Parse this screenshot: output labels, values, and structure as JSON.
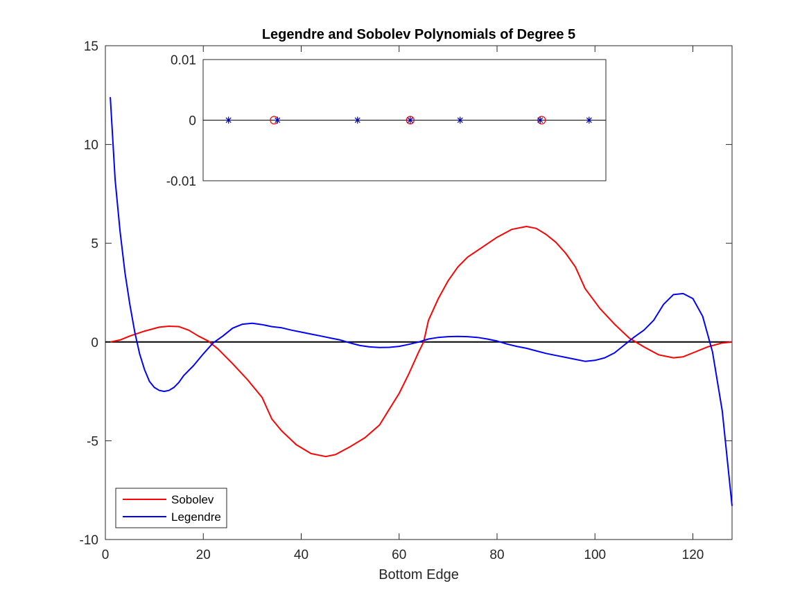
{
  "chart_data": [
    {
      "type": "line",
      "title": "Legendre and Sobolev Polynomials of Degree 5",
      "xlabel": "Bottom Edge",
      "ylabel": "",
      "xlim": [
        0,
        128
      ],
      "ylim": [
        -10,
        15
      ],
      "x_ticks": [
        "0",
        "20",
        "40",
        "60",
        "80",
        "100",
        "120"
      ],
      "y_ticks": [
        "-10",
        "-5",
        "0",
        "5",
        "10",
        "15"
      ],
      "grid": false,
      "legend": {
        "position": "bottom-left",
        "entries": [
          "Sobolev",
          "Legendre"
        ]
      },
      "reference_line": {
        "y": 0,
        "color": "#000000"
      },
      "series": [
        {
          "name": "Sobolev",
          "color": "#ff0000",
          "x": [
            1,
            3,
            5,
            8,
            11,
            13,
            15,
            17,
            19,
            21,
            23,
            26,
            29,
            32,
            34,
            36,
            39,
            42,
            45,
            47,
            50,
            53,
            56,
            58,
            60,
            62,
            64,
            65,
            66,
            68,
            70,
            72,
            74,
            77,
            80,
            83,
            86,
            88,
            90,
            92,
            94,
            96,
            98,
            101,
            104,
            107,
            110,
            113,
            116,
            118,
            120,
            123,
            126,
            128
          ],
          "y": [
            0,
            0.1,
            0.3,
            0.55,
            0.75,
            0.8,
            0.78,
            0.6,
            0.3,
            0.05,
            -0.35,
            -1.1,
            -1.9,
            -2.8,
            -3.9,
            -4.5,
            -5.2,
            -5.65,
            -5.8,
            -5.7,
            -5.3,
            -4.85,
            -4.2,
            -3.4,
            -2.6,
            -1.6,
            -0.5,
            0,
            1.1,
            2.2,
            3.1,
            3.8,
            4.3,
            4.8,
            5.3,
            5.7,
            5.85,
            5.75,
            5.45,
            5.05,
            4.5,
            3.8,
            2.7,
            1.7,
            0.9,
            0.2,
            -0.25,
            -0.65,
            -0.8,
            -0.75,
            -0.55,
            -0.25,
            -0.05,
            0
          ]
        },
        {
          "name": "Legendre",
          "color": "#0000ff",
          "x": [
            1,
            2,
            3,
            4,
            5,
            6,
            7,
            8,
            9,
            10,
            11,
            12,
            13,
            14,
            15,
            16,
            18,
            20,
            22,
            24,
            26,
            28,
            30,
            32,
            34,
            36,
            38,
            40,
            42,
            44,
            46,
            48,
            50,
            52,
            54,
            56,
            58,
            60,
            62,
            64,
            66,
            68,
            70,
            72,
            74,
            76,
            78,
            80,
            82,
            84,
            86,
            88,
            90,
            92,
            94,
            96,
            98,
            100,
            102,
            104,
            106,
            108,
            110,
            112,
            114,
            116,
            118,
            120,
            122,
            124,
            126,
            128
          ],
          "y": [
            12.4,
            8.2,
            5.6,
            3.5,
            1.9,
            0.5,
            -0.6,
            -1.4,
            -2.0,
            -2.3,
            -2.45,
            -2.5,
            -2.45,
            -2.3,
            -2.05,
            -1.7,
            -1.2,
            -0.6,
            -0.05,
            0.3,
            0.7,
            0.9,
            0.95,
            0.88,
            0.78,
            0.72,
            0.6,
            0.5,
            0.4,
            0.3,
            0.2,
            0.1,
            -0.05,
            -0.18,
            -0.25,
            -0.28,
            -0.27,
            -0.22,
            -0.12,
            0,
            0.15,
            0.23,
            0.27,
            0.28,
            0.27,
            0.23,
            0.15,
            0.05,
            -0.1,
            -0.22,
            -0.32,
            -0.45,
            -0.58,
            -0.68,
            -0.78,
            -0.88,
            -0.98,
            -0.93,
            -0.8,
            -0.55,
            -0.15,
            0.25,
            0.6,
            1.1,
            1.9,
            2.4,
            2.45,
            2.2,
            1.3,
            -0.5,
            -3.5,
            -8.3
          ]
        }
      ]
    },
    {
      "type": "scatter",
      "title": "",
      "xlabel": "",
      "ylabel": "",
      "ylim": [
        -0.01,
        0.01
      ],
      "y_ticks": [
        "0.01",
        "0",
        "-0.01"
      ],
      "grid": false,
      "reference_line": {
        "y": 0,
        "color": "#000000"
      },
      "series": [
        {
          "name": "",
          "marker": "circle",
          "color": "#ff0000",
          "x": [
            33.3,
            61.7,
            89.1
          ],
          "y": [
            0,
            0,
            0
          ]
        },
        {
          "name": "",
          "marker": "asterisk",
          "color": "#0000aa",
          "x": [
            23.8,
            34.0,
            50.7,
            61.7,
            72.1,
            88.8,
            99.0
          ],
          "y": [
            0,
            0,
            0,
            0,
            0,
            0,
            0
          ]
        }
      ]
    }
  ]
}
